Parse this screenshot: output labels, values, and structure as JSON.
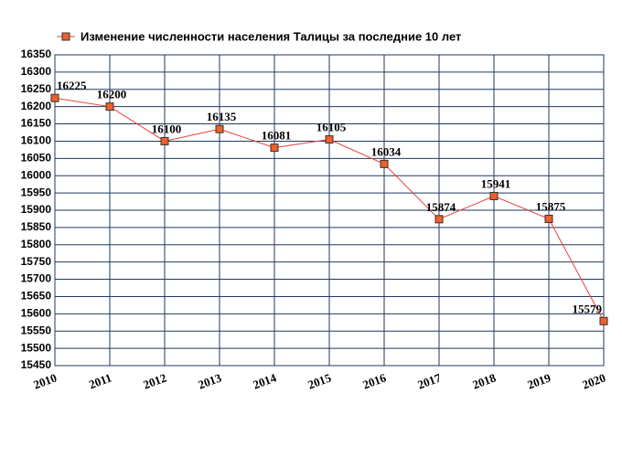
{
  "chart_data": {
    "type": "line",
    "legend": "Изменение численности населения Талицы за последние 10 лет",
    "categories": [
      "2010",
      "2011",
      "2012",
      "2013",
      "2014",
      "2015",
      "2016",
      "2017",
      "2018",
      "2019",
      "2020"
    ],
    "values": [
      16225,
      16200,
      16100,
      16135,
      16081,
      16105,
      16034,
      15874,
      15941,
      15875,
      15579
    ],
    "color": "#e8403a",
    "marker_color": "#f0602a",
    "ylim": [
      15450,
      16350
    ],
    "yticks": [
      15450,
      15500,
      15550,
      15600,
      15650,
      15700,
      15750,
      15800,
      15850,
      15900,
      15950,
      16000,
      16050,
      16100,
      16150,
      16200,
      16250,
      16300,
      16350
    ],
    "grid": true
  }
}
